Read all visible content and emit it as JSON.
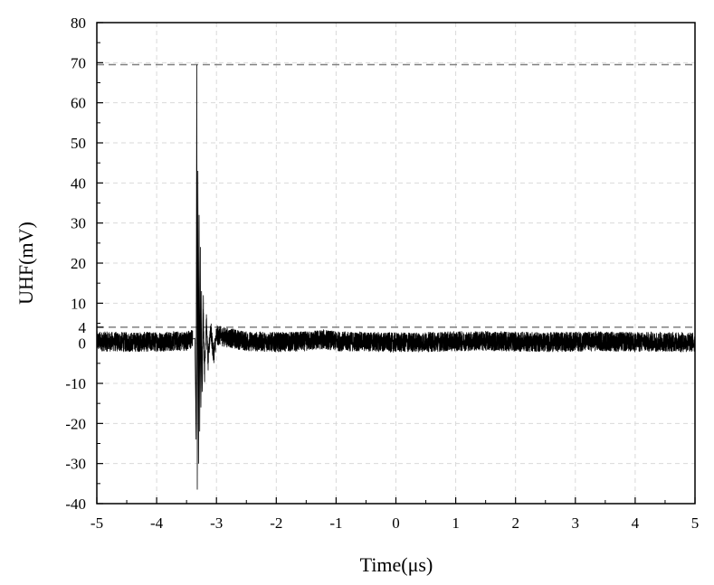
{
  "chart_data": {
    "type": "line",
    "title": "",
    "xlabel": "Time(μs)",
    "ylabel": "UHF(mV)",
    "xlim": [
      -5,
      5
    ],
    "ylim": [
      -40,
      80
    ],
    "x_ticks": [
      -5,
      -4,
      -3,
      -2,
      -1,
      0,
      1,
      2,
      3,
      4,
      5
    ],
    "y_ticks": [
      -40,
      -30,
      -20,
      -10,
      0,
      4,
      10,
      20,
      30,
      40,
      50,
      60,
      70,
      80
    ],
    "grid": true,
    "legend": "none",
    "reference_lines": [
      {
        "y": 69.5,
        "style": "dashed",
        "color": "#808080"
      },
      {
        "y": 4,
        "style": "dashed",
        "color": "#808080"
      }
    ],
    "series": [
      {
        "color": "#000000",
        "noise_amplitude_mV": 2.5,
        "peak": {
          "x": -3.32,
          "y_max": 69.5,
          "y_min": -36.5
        },
        "x": [
          -5,
          -4.5,
          -4,
          -3.5,
          -3.36,
          -3.34,
          -3.33,
          -3.32,
          -3.31,
          -3.3,
          -3.29,
          -3.28,
          -3.27,
          -3.26,
          -3.25,
          -3.24,
          -3.22,
          -3.2,
          -3.17,
          -3.14,
          -3.1,
          -3.05,
          -3.0,
          -2.5,
          -2.0,
          -1.5,
          -1.2,
          -1.0,
          -0.5,
          0,
          0.5,
          1.0,
          1.5,
          2.0,
          2.5,
          3.0,
          3.5,
          4.0,
          4.5,
          5.0
        ],
        "y": [
          0.5,
          0.3,
          0.4,
          0.6,
          1.2,
          -24.0,
          69.5,
          -36.5,
          43.0,
          -30.0,
          32.0,
          -22.0,
          24.0,
          -16.0,
          13.0,
          -12.0,
          10.0,
          -8.0,
          6.0,
          -5.0,
          4.0,
          -3.0,
          2.0,
          0.5,
          0.3,
          0.5,
          1.0,
          0.5,
          0.4,
          0.2,
          0.3,
          0.5,
          0.6,
          0.4,
          0.3,
          0.4,
          0.5,
          0.3,
          0.4,
          0.2
        ]
      }
    ]
  }
}
